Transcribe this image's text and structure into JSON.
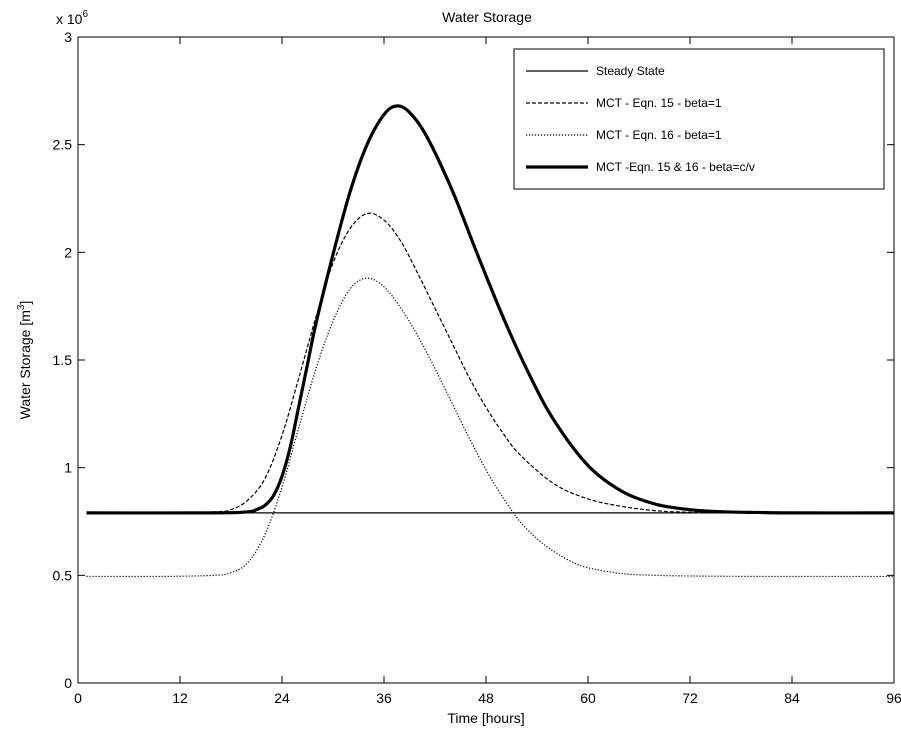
{
  "chart_data": {
    "type": "line",
    "title": "Water Storage",
    "xlabel": "Time [hours]",
    "ylabel_main": "Water Storage [m",
    "ylabel_sup": "3",
    "ylabel_close": "]",
    "exponent_base": "x 10",
    "exponent_power": "6",
    "xlim": [
      0,
      96
    ],
    "ylim": [
      0,
      3000000
    ],
    "y_scale": 1000000,
    "xticks": [
      0,
      12,
      24,
      36,
      48,
      60,
      72,
      84,
      96
    ],
    "xtick_labels": [
      "0",
      "12",
      "24",
      "36",
      "48",
      "60",
      "72",
      "84",
      "96"
    ],
    "yticks": [
      0,
      500000,
      1000000,
      1500000,
      2000000,
      2500000,
      3000000
    ],
    "ytick_labels": [
      "0",
      "0.5",
      "1",
      "1.5",
      "2",
      "2.5",
      "3"
    ],
    "grid": false,
    "legend_position": "top-right",
    "series": [
      {
        "name": "Steady State",
        "style": "solid",
        "color": "#000000",
        "x": [
          1,
          96
        ],
        "y": [
          790000,
          790000
        ]
      },
      {
        "name": "MCT - Eqn. 15 - beta=1",
        "style": "dashed",
        "color": "#000000",
        "x": [
          1,
          10,
          16,
          18,
          20,
          22,
          24,
          26,
          28,
          30,
          32,
          34,
          36,
          38,
          40,
          42,
          44,
          46,
          48,
          50,
          52,
          56,
          60,
          64,
          68,
          72,
          80,
          96
        ],
        "y": [
          790000,
          790000,
          795000,
          805000,
          850000,
          950000,
          1150000,
          1420000,
          1700000,
          1950000,
          2110000,
          2180000,
          2150000,
          2050000,
          1900000,
          1740000,
          1580000,
          1420000,
          1280000,
          1160000,
          1060000,
          925000,
          855000,
          820000,
          800000,
          793000,
          790000,
          790000
        ]
      },
      {
        "name": "MCT - Eqn. 16 - beta=1",
        "style": "dotted",
        "color": "#000000",
        "x": [
          1,
          10,
          16,
          18,
          20,
          22,
          24,
          26,
          28,
          30,
          32,
          34,
          36,
          38,
          40,
          42,
          44,
          46,
          48,
          50,
          52,
          54,
          56,
          58,
          60,
          64,
          68,
          72,
          80,
          96
        ],
        "y": [
          495000,
          495000,
          500000,
          512000,
          560000,
          690000,
          910000,
          1190000,
          1460000,
          1680000,
          1830000,
          1880000,
          1840000,
          1740000,
          1610000,
          1460000,
          1300000,
          1140000,
          990000,
          860000,
          750000,
          670000,
          610000,
          565000,
          535000,
          508000,
          500000,
          497000,
          495000,
          495000
        ]
      },
      {
        "name": "MCT -Eqn. 15 & 16 - beta=c/v",
        "style": "bold",
        "color": "#000000",
        "x": [
          1,
          16,
          20,
          21,
          22,
          23,
          24,
          25,
          26,
          27,
          28,
          30,
          32,
          34,
          36,
          37.5,
          39,
          41,
          44,
          47,
          50,
          53,
          56,
          60,
          64,
          68,
          72,
          76,
          80,
          84,
          96
        ],
        "y": [
          790000,
          790000,
          795000,
          805000,
          825000,
          870000,
          960000,
          1100000,
          1290000,
          1480000,
          1670000,
          1990000,
          2280000,
          2500000,
          2640000,
          2680000,
          2650000,
          2540000,
          2290000,
          1990000,
          1700000,
          1440000,
          1220000,
          1010000,
          890000,
          830000,
          805000,
          795000,
          792000,
          790000,
          790000
        ]
      }
    ]
  }
}
